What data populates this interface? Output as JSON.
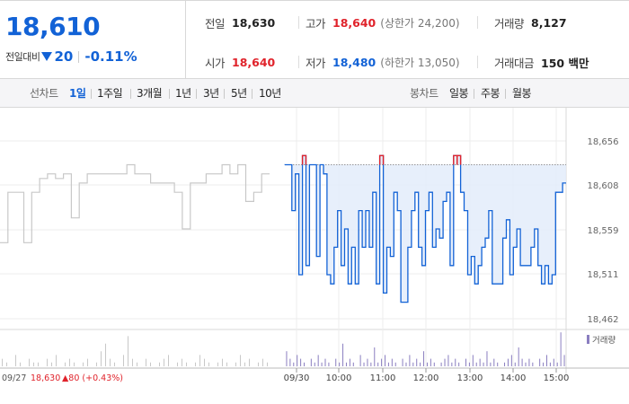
{
  "quote": {
    "current_price": "18,610",
    "change_label": "전일대비",
    "change_amount": "20",
    "change_pct": "-0.11%"
  },
  "stats": {
    "prev_close_label": "전일",
    "prev_close": "18,630",
    "high_label": "고가",
    "high": "18,640",
    "upper_limit": "(상한가 24,200)",
    "volume_label": "거래량",
    "volume": "8,127",
    "open_label": "시가",
    "open": "18,640",
    "low_label": "저가",
    "low": "18,480",
    "lower_limit": "(하한가 13,050)",
    "value_label": "거래대금",
    "value": "150 백만"
  },
  "toolbar": {
    "line_chart_label": "선차트",
    "periods": [
      "1일",
      "1주일",
      "3개월",
      "1년",
      "3년",
      "5년",
      "10년"
    ],
    "active_period": "1일",
    "candle_label": "봉차트",
    "candles": [
      "일봉",
      "주봉",
      "월봉"
    ]
  },
  "colors": {
    "blue": "#1262d6",
    "red": "#e0232b",
    "prev_line": "#c8c8c8",
    "fill": "#e3ecfa",
    "volume_prev": "#c8c8c8",
    "volume_today": "#8a7ec0"
  },
  "chart_data": {
    "type": "line",
    "y_ticks": [
      "18,656",
      "18,608",
      "18,559",
      "18,511",
      "18,462"
    ],
    "ylim": [
      18462,
      18656
    ],
    "x_tick_labels": [
      "09/30",
      "10:00",
      "11:00",
      "12:00",
      "13:00",
      "14:00",
      "15:00"
    ],
    "prev_day_label": "09/27",
    "prev_day_close": "18,630",
    "prev_day_change": "▲80 (+0.43%)",
    "reference_line": 18630,
    "volume_legend": "거래량",
    "series": [
      {
        "values": [
          18545,
          18600,
          18600,
          18545,
          18600,
          18615,
          18620,
          18615,
          18620,
          18572,
          18610,
          18620,
          18620,
          18620,
          18620,
          18620,
          18630,
          18620,
          18620,
          18610,
          18610,
          18610,
          18600,
          18560,
          18610,
          18610,
          18620,
          18620,
          18630,
          18620,
          18630,
          18590,
          18600,
          18620
        ]
      },
      {
        "values": [
          18630,
          18630,
          18580,
          18620,
          18510,
          18640,
          18520,
          18630,
          18630,
          18530,
          18630,
          18620,
          18510,
          18500,
          18540,
          18580,
          18520,
          18560,
          18500,
          18540,
          18500,
          18580,
          18540,
          18580,
          18540,
          18600,
          18500,
          18640,
          18490,
          18540,
          18530,
          18600,
          18580,
          18480,
          18480,
          18540,
          18580,
          18600,
          18540,
          18520,
          18580,
          18600,
          18540,
          18560,
          18550,
          18590,
          18600,
          18520,
          18640,
          18640,
          18600,
          18580,
          18510,
          18530,
          18500,
          18520,
          18540,
          18550,
          18580,
          18500,
          18500,
          18500,
          18550,
          18570,
          18510,
          18540,
          18560,
          18520,
          18520,
          18520,
          18540,
          18560,
          18520,
          18500,
          18520,
          18500,
          18510,
          18600,
          18600,
          18610
        ]
      }
    ]
  }
}
